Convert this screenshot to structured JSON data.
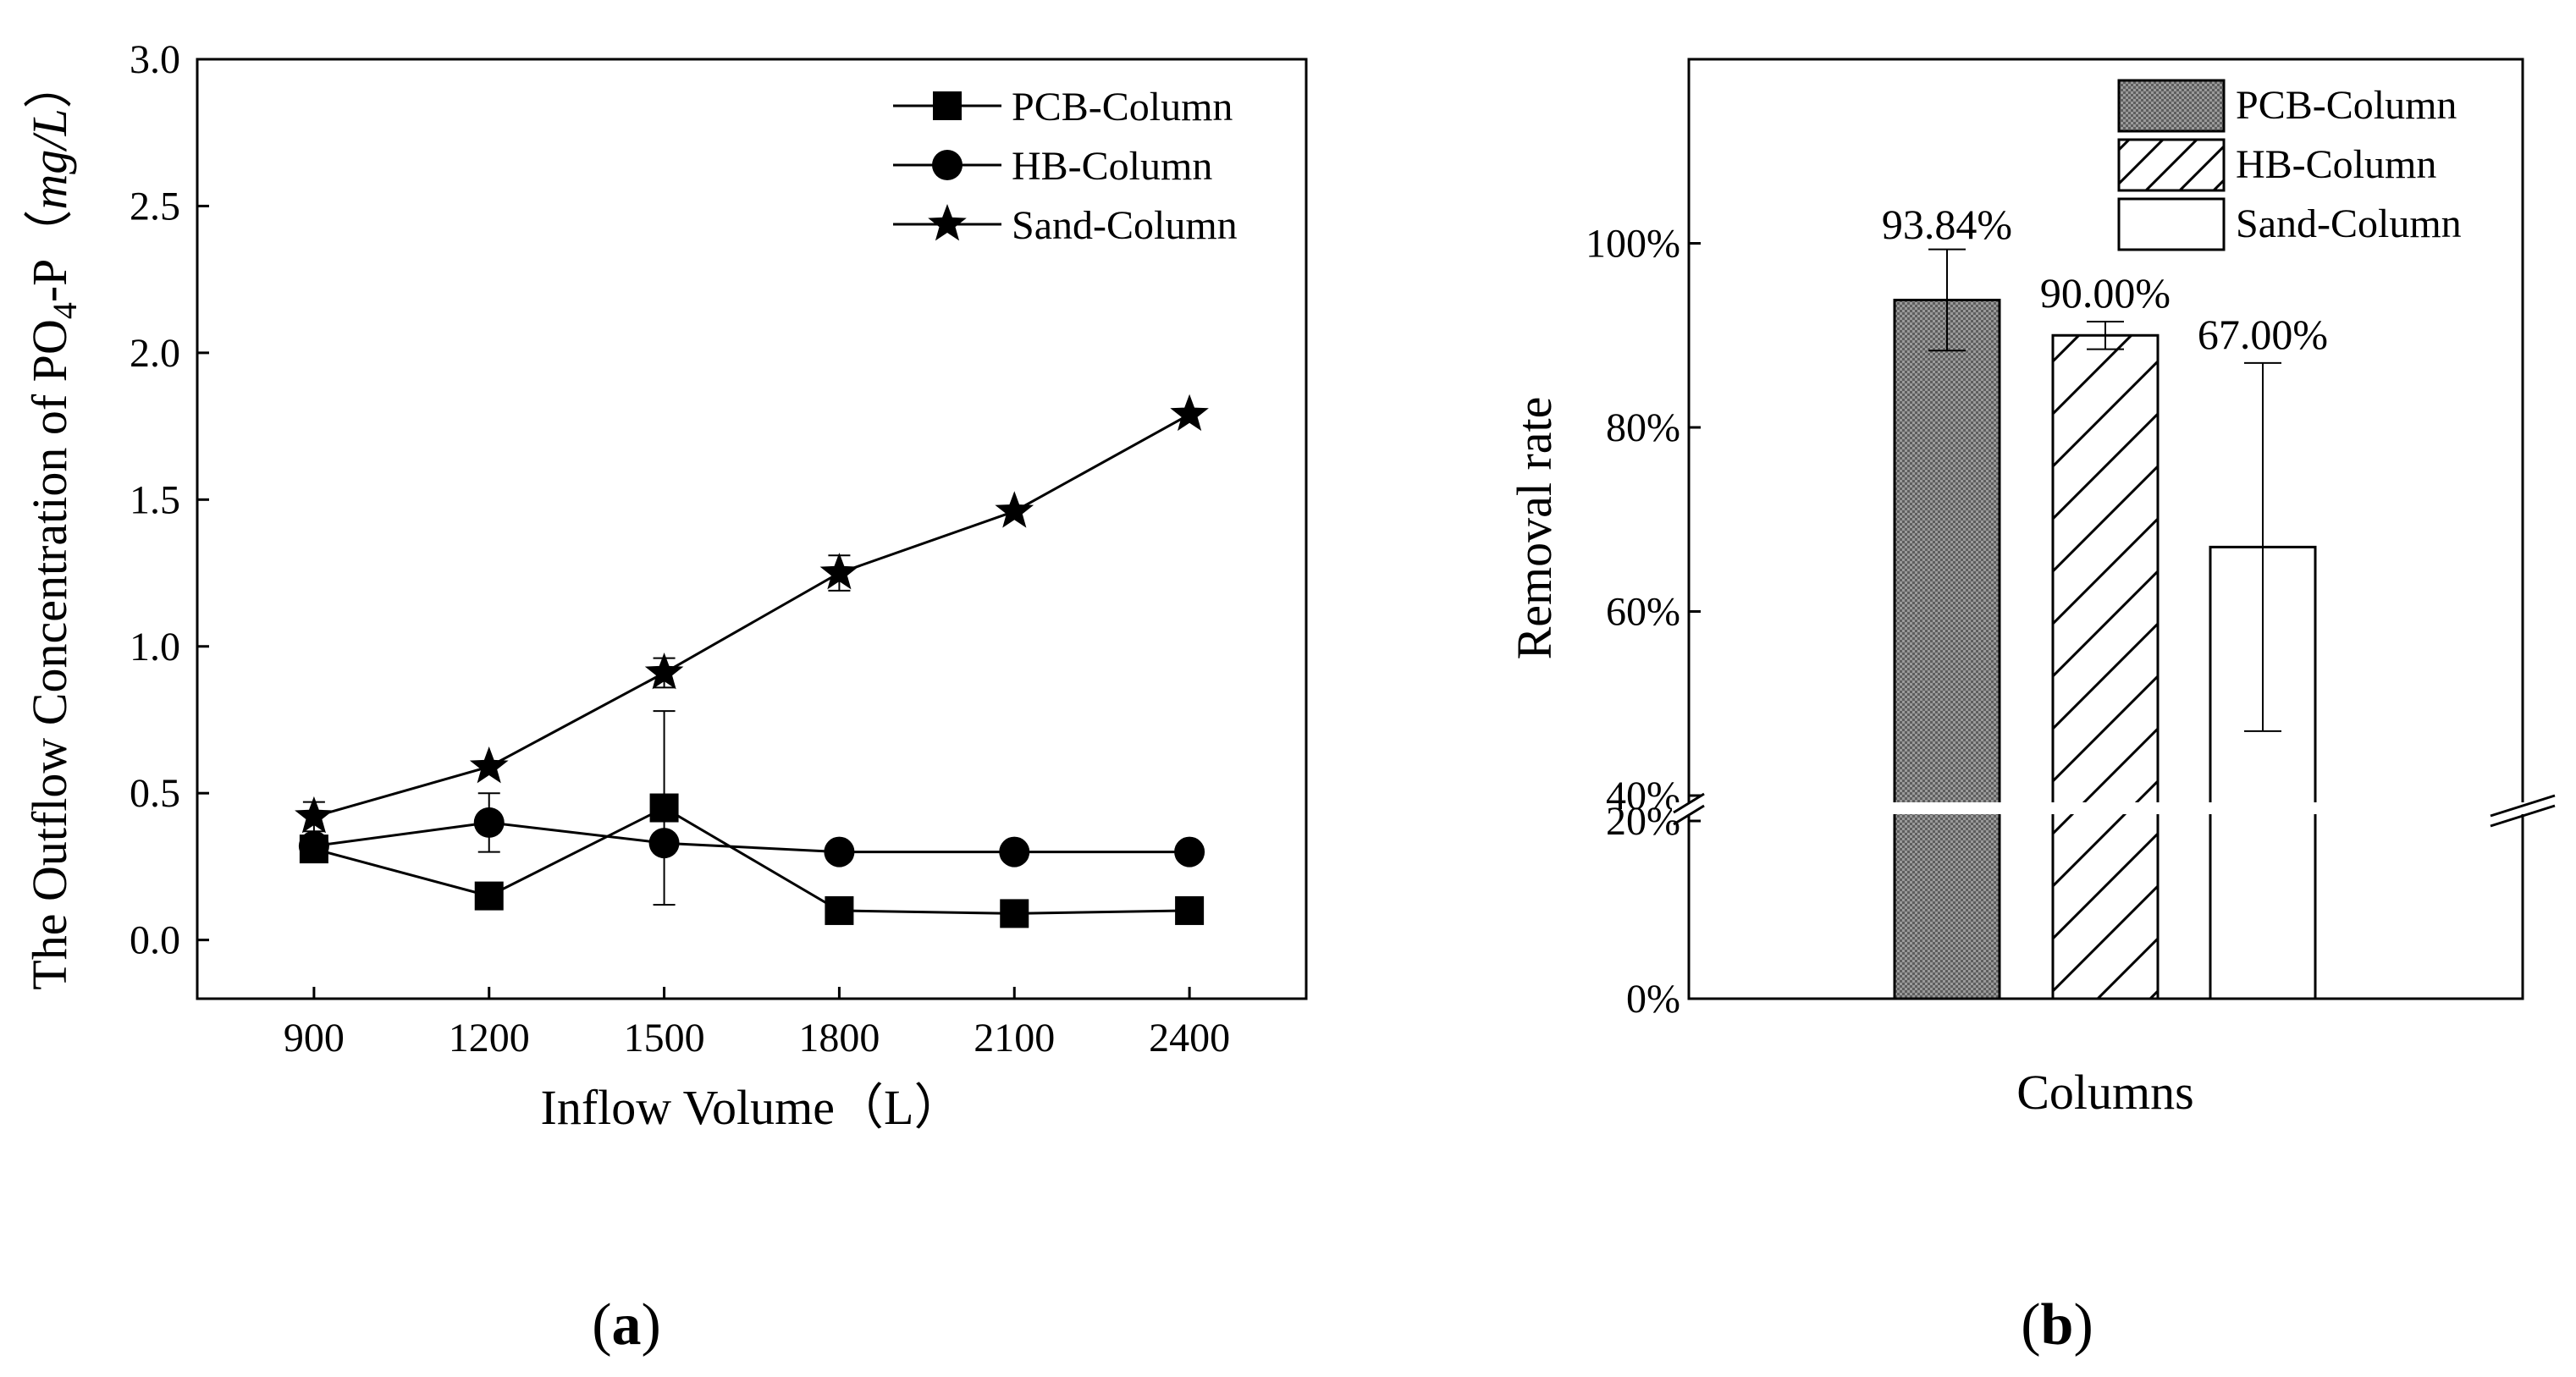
{
  "chart_data": [
    {
      "type": "line",
      "panel_label": "a",
      "xlabel": "Inflow Volume（L）",
      "ylabel": {
        "main": "The Outflow Concentration of PO",
        "subscript": "4",
        "suffix": "-P（",
        "unit": "mg/L",
        "close": "）"
      },
      "x": [
        900,
        1200,
        1500,
        1800,
        2100,
        2400
      ],
      "x_ticks": [
        "900",
        "1200",
        "1500",
        "1800",
        "2100",
        "2400"
      ],
      "xlim": [
        700,
        2600
      ],
      "y_ticks": [
        "0.0",
        "0.5",
        "1.0",
        "1.5",
        "2.0",
        "2.5",
        "3.0"
      ],
      "ylim": [
        -0.2,
        3.0
      ],
      "legend_position": "top-right",
      "series": [
        {
          "name": "PCB-Column",
          "marker": "square",
          "values": [
            0.31,
            0.15,
            0.45,
            0.1,
            0.09,
            0.1
          ],
          "errors": [
            null,
            null,
            0.33,
            null,
            null,
            null
          ]
        },
        {
          "name": "HB-Column",
          "marker": "circle",
          "values": [
            0.32,
            0.4,
            0.33,
            0.3,
            0.3,
            0.3
          ],
          "errors": [
            null,
            0.1,
            null,
            null,
            null,
            null
          ]
        },
        {
          "name": "Sand-Column",
          "marker": "star",
          "values": [
            0.42,
            0.59,
            0.91,
            1.25,
            1.46,
            1.79
          ],
          "errors": [
            0.05,
            null,
            0.05,
            0.06,
            null,
            null
          ]
        }
      ]
    },
    {
      "type": "bar",
      "panel_label": "b",
      "xlabel": "Columns",
      "ylabel": "Removal rate",
      "categories": [
        "PCB-Column",
        "HB-Column",
        "Sand-Column"
      ],
      "values": [
        93.84,
        90.0,
        67.0
      ],
      "errors": [
        5.5,
        1.5,
        20.0
      ],
      "data_labels": [
        "93.84%",
        "90.00%",
        "67.00%"
      ],
      "fills": [
        "crosshatch-gray",
        "diagonal-hatch",
        "white"
      ],
      "y_ticks_upper": [
        "40%",
        "60%",
        "80%",
        "100%"
      ],
      "y_ticks_lower": [
        "0%",
        "20%"
      ],
      "axis_break": [
        20,
        40
      ],
      "ylim_upper": [
        40,
        120
      ],
      "ylim_lower": [
        0,
        20
      ],
      "legend_position": "top-right"
    }
  ]
}
